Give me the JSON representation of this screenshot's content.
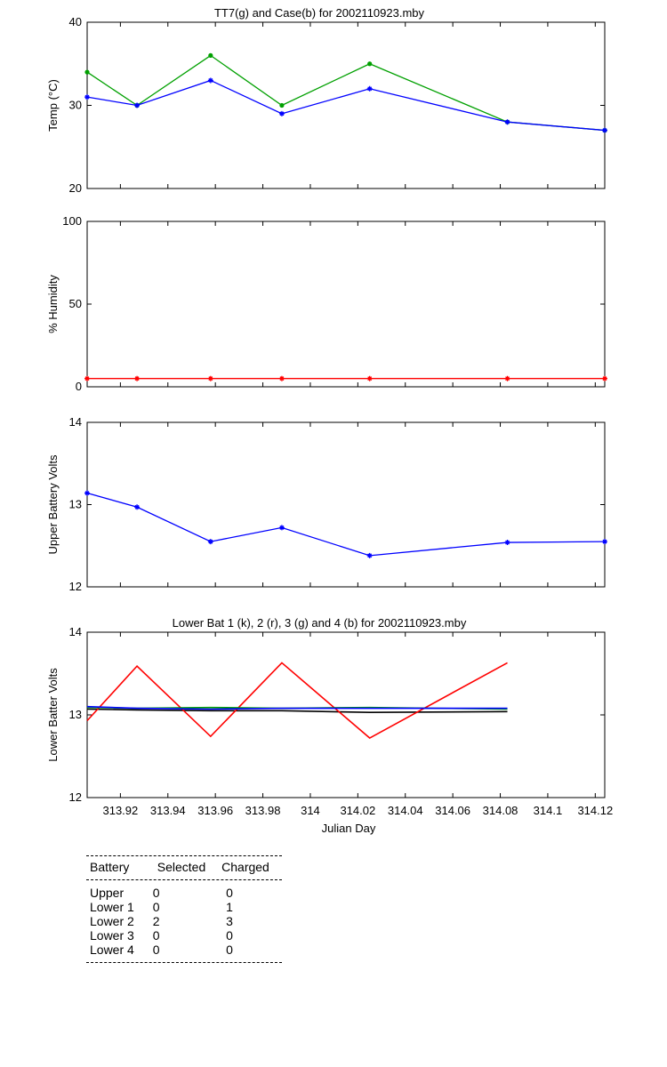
{
  "xaxis": {
    "label": "Julian Day",
    "range": [
      313.906,
      314.124
    ],
    "ticks": [
      313.92,
      313.94,
      313.96,
      313.98,
      314,
      314.02,
      314.04,
      314.06,
      314.08,
      314.1,
      314.12
    ],
    "tick_labels": [
      "313.92",
      "313.94",
      "313.96",
      "313.98",
      "314",
      "314.02",
      "314.04",
      "314.06",
      "314.08",
      "314.1",
      "314.12"
    ]
  },
  "chart_data": [
    {
      "type": "line",
      "title": "TT7(g) and Case(b) for 2002110923.mby",
      "ylabel": "Temp  (°C)",
      "ylim": [
        20,
        40
      ],
      "yticks": [
        20,
        30,
        40
      ],
      "x": [
        313.906,
        313.927,
        313.958,
        313.988,
        314.025,
        314.083,
        314.124
      ],
      "series": [
        {
          "name": "TT7",
          "color": "#00a000",
          "marker": "dot",
          "values": [
            34,
            30,
            36,
            30,
            35,
            28,
            27
          ]
        },
        {
          "name": "Case",
          "color": "#0000ff",
          "marker": "star",
          "values": [
            31,
            30,
            33,
            29,
            32,
            28,
            27
          ]
        }
      ]
    },
    {
      "type": "line",
      "title": "",
      "ylabel": "% Humidity",
      "ylim": [
        0,
        100
      ],
      "yticks": [
        0,
        50,
        100
      ],
      "x": [
        313.906,
        313.927,
        313.958,
        313.988,
        314.025,
        314.083,
        314.124
      ],
      "series": [
        {
          "name": "",
          "color": "#ff0000",
          "marker": "star",
          "values": [
            5,
            5,
            5,
            5,
            5,
            5,
            5
          ]
        }
      ]
    },
    {
      "type": "line",
      "title": "",
      "ylabel": "Upper Battery Volts",
      "ylim": [
        12,
        14
      ],
      "yticks": [
        12,
        13,
        14
      ],
      "x": [
        313.906,
        313.927,
        313.958,
        313.988,
        314.025,
        314.083,
        314.124
      ],
      "series": [
        {
          "name": "",
          "color": "#0000ff",
          "marker": "star",
          "values": [
            13.14,
            12.97,
            12.55,
            12.72,
            12.38,
            12.54,
            12.55
          ]
        }
      ]
    },
    {
      "type": "line",
      "title": "Lower Bat 1 (k), 2 (r), 3 (g) and 4 (b) for 2002110923.mby",
      "ylabel": "Lower Batter Volts",
      "ylim": [
        12,
        14
      ],
      "yticks": [
        12,
        13,
        14
      ],
      "x": [
        313.906,
        313.927,
        313.958,
        313.988,
        314.025,
        314.083
      ],
      "series": [
        {
          "name": "1",
          "color": "#000000",
          "marker": "none",
          "values": [
            13.07,
            13.06,
            13.05,
            13.05,
            13.03,
            13.04
          ]
        },
        {
          "name": "2",
          "color": "#ff0000",
          "marker": "none",
          "values": [
            12.93,
            13.59,
            12.74,
            13.63,
            12.72,
            13.63
          ]
        },
        {
          "name": "3",
          "color": "#00a000",
          "marker": "none",
          "values": [
            13.09,
            13.08,
            13.09,
            13.08,
            13.09,
            13.07
          ]
        },
        {
          "name": "4",
          "color": "#0000ff",
          "marker": "none",
          "values": [
            13.1,
            13.08,
            13.07,
            13.08,
            13.08,
            13.08
          ]
        }
      ]
    }
  ],
  "battery_table": {
    "headers": [
      "Battery",
      "Selected",
      "Charged"
    ],
    "rows": [
      {
        "battery": "Upper",
        "selected": "0",
        "charged": "0"
      },
      {
        "battery": "Lower 1",
        "selected": "0",
        "charged": "1"
      },
      {
        "battery": "Lower 2",
        "selected": "2",
        "charged": "3"
      },
      {
        "battery": "Lower 3",
        "selected": "0",
        "charged": "0"
      },
      {
        "battery": "Lower 4",
        "selected": "0",
        "charged": "0"
      }
    ]
  }
}
